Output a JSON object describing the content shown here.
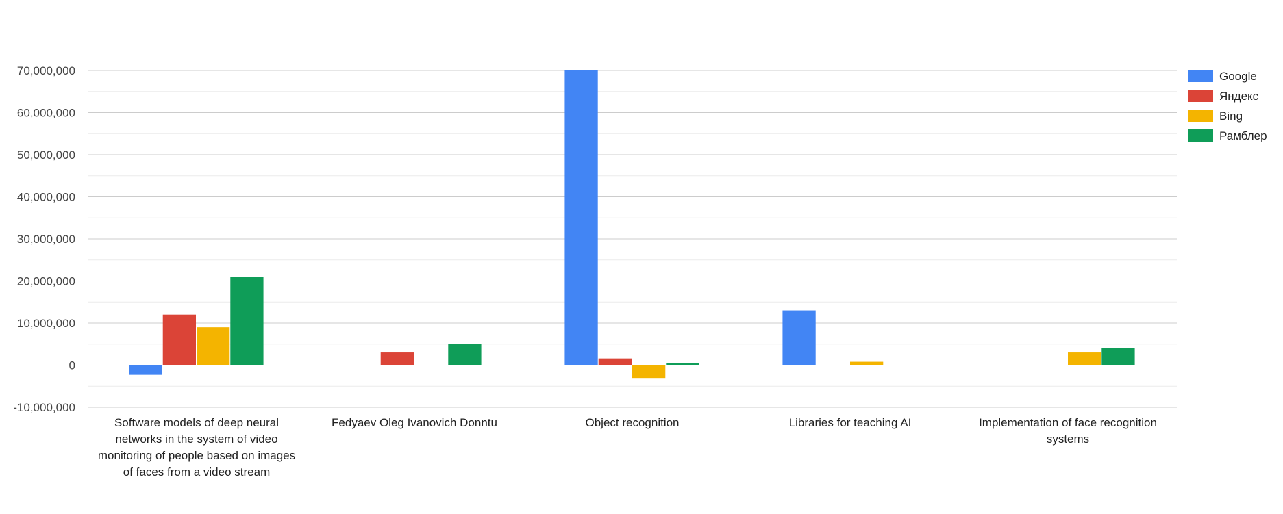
{
  "chart_data": {
    "type": "bar",
    "title": "",
    "xlabel": "",
    "ylabel": "",
    "categories": [
      "Software models of deep neural networks in the system of video monitoring of people based on images of faces from a video stream",
      "Fedyaev Oleg Ivanovich Donntu",
      "Object recognition",
      "Libraries for teaching AI",
      "Implementation of face recognition systems"
    ],
    "category_label_lines": [
      [
        "Software models of deep neural",
        "networks in the system of video",
        "monitoring of people based on images",
        "of faces from a video stream"
      ],
      [
        "Fedyaev Oleg Ivanovich Donntu"
      ],
      [
        "Object recognition"
      ],
      [
        "Libraries for teaching AI"
      ],
      [
        "Implementation of face recognition",
        "systems"
      ]
    ],
    "series": [
      {
        "name": "Google",
        "color": "#4285f4",
        "values": [
          -2300000,
          0,
          70000000,
          13000000,
          0
        ]
      },
      {
        "name": "Яндекс",
        "color": "#db4437",
        "values": [
          12000000,
          3000000,
          1600000,
          0,
          0
        ]
      },
      {
        "name": "Bing",
        "color": "#f4b400",
        "values": [
          9000000,
          0,
          -3200000,
          800000,
          3000000
        ]
      },
      {
        "name": "Рамблер",
        "color": "#0f9d58",
        "values": [
          21000000,
          5000000,
          500000,
          0,
          4000000
        ]
      }
    ],
    "ylim": [
      -10000000,
      70000000
    ],
    "yticks": [
      70000000,
      60000000,
      50000000,
      40000000,
      30000000,
      20000000,
      10000000,
      0,
      -10000000
    ],
    "ytick_labels": [
      "70,000,000",
      "60,000,000",
      "50,000,000",
      "40,000,000",
      "30,000,000",
      "20,000,000",
      "10,000,000",
      "0",
      "-10,000,000"
    ],
    "grid": true,
    "legend_position": "right"
  }
}
